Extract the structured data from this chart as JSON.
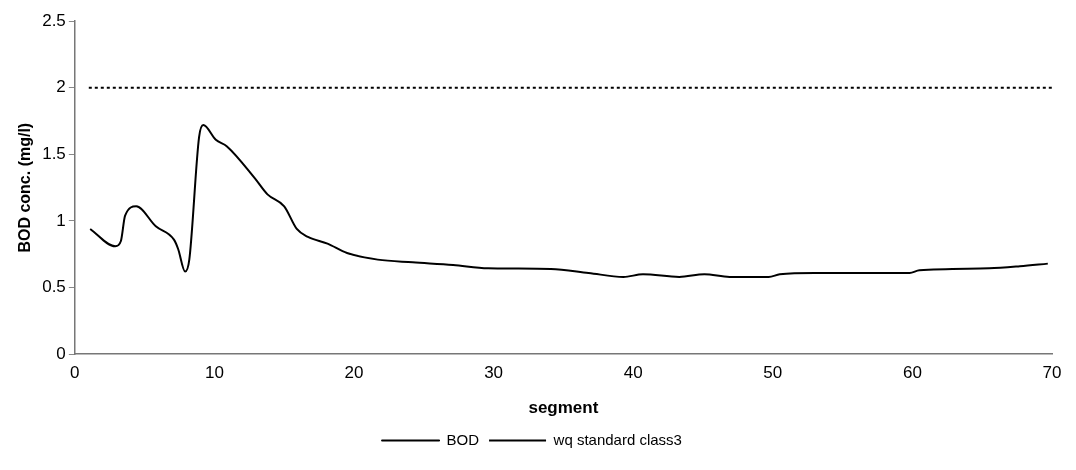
{
  "chart_data": {
    "type": "line",
    "xlabel": "segment",
    "ylabel": "BOD conc. (mg/l)",
    "xlim": [
      0,
      70
    ],
    "xticks": [
      0,
      10,
      20,
      30,
      40,
      50,
      60,
      70
    ],
    "ylim": [
      0,
      2.5
    ],
    "yticks": [
      0,
      0.5,
      1,
      1.5,
      2,
      2.5
    ],
    "grid": false,
    "legend": "bottom",
    "marker": "none",
    "series": [
      {
        "name": "BOD",
        "color": "#000000",
        "line_style": "solid",
        "x": [
          1.1,
          2.9,
          3.3,
          3.6,
          4.4,
          5.8,
          7.1,
          7.4,
          7.9,
          8.2,
          8.9,
          9.2,
          10.1,
          10.9,
          12.9,
          13.8,
          15.0,
          15.9,
          16.7,
          18.1,
          19.5,
          21.7,
          24.2,
          27.1,
          29.6,
          34.1,
          36.8,
          39.3,
          40.7,
          43.3,
          45.1,
          46.9,
          49.7,
          50.5,
          53.0,
          59.8,
          60.5,
          65.5,
          67.7,
          69.7
        ],
        "values": [
          0.94,
          0.81,
          0.85,
          1.04,
          1.11,
          0.96,
          0.86,
          0.79,
          0.62,
          0.71,
          1.63,
          1.72,
          1.61,
          1.56,
          1.32,
          1.2,
          1.11,
          0.94,
          0.88,
          0.83,
          0.76,
          0.71,
          0.69,
          0.67,
          0.645,
          0.64,
          0.61,
          0.58,
          0.6,
          0.58,
          0.6,
          0.58,
          0.58,
          0.6,
          0.61,
          0.61,
          0.63,
          0.645,
          0.66,
          0.68
        ]
      },
      {
        "name": "wq standard class3",
        "color": "#000000",
        "line_style": "dotted",
        "x": [
          1,
          70
        ],
        "values": [
          2,
          2
        ]
      }
    ]
  }
}
